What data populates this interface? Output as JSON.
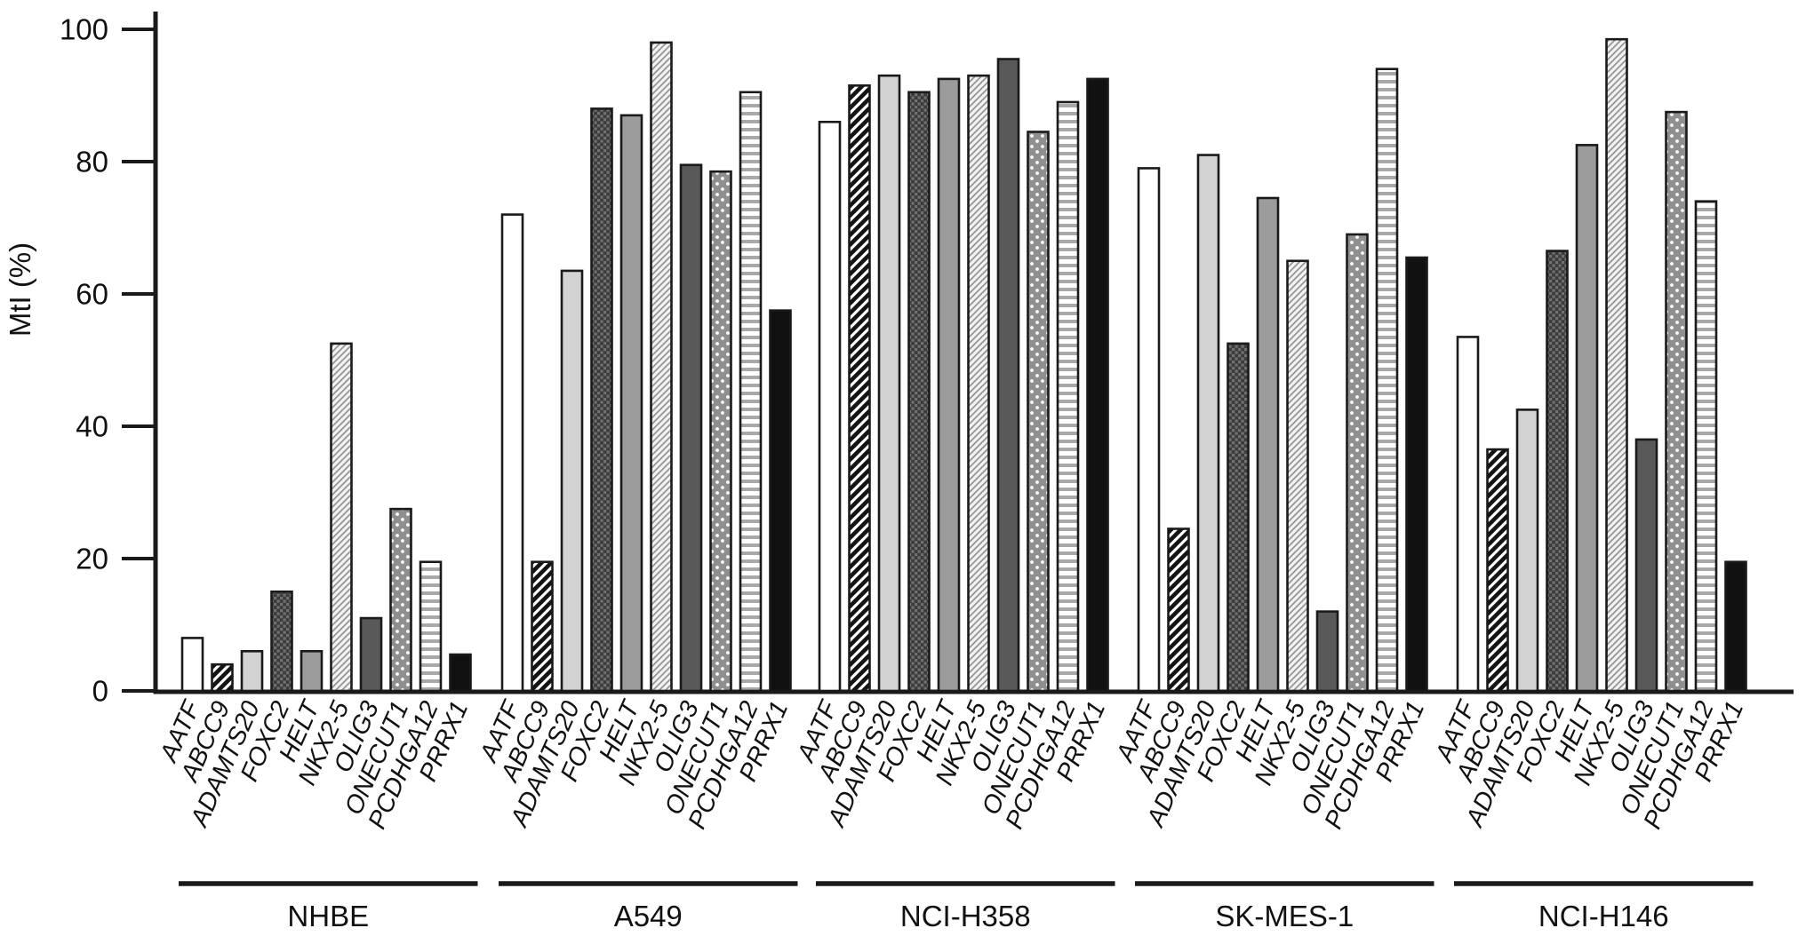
{
  "figure": {
    "description": "Grouped bar chart of methylation index (MtI %) for ten genes across five cell lines"
  },
  "colors": {
    "background": "#ffffff",
    "axis": "#1a1a1a",
    "bar_outline": "#1a1a1a",
    "text": "#111111",
    "solid_fills": {
      "white": "#ffffff",
      "light_gray": "#d2d2d2",
      "medium_gray": "#9c9c9c",
      "dark_gray": "#595959",
      "black": "#111111"
    }
  },
  "chart_data": {
    "type": "bar",
    "title": "",
    "xlabel": "",
    "ylabel": "MtI (%)",
    "ylim": [
      0,
      100
    ],
    "yticks": [
      0,
      20,
      40,
      60,
      80,
      100
    ],
    "grid": false,
    "legend_position": "none",
    "categories": [
      "AATF",
      "ABCC9",
      "ADAMTS20",
      "FOXC2",
      "HELT",
      "NKX2-5",
      "OLIG3",
      "ONECUT1",
      "PCDHGA12",
      "PRRX1"
    ],
    "category_patterns": [
      "white",
      "diagonal-hatch-bold",
      "light-gray",
      "dark-checker",
      "medium-gray",
      "fine-diagonal-stripes",
      "dark-gray",
      "gray-polka-dots",
      "horizontal-stripes",
      "black"
    ],
    "series": [
      {
        "name": "NHBE",
        "values": [
          8,
          4,
          6,
          15,
          6,
          52.5,
          11,
          27.5,
          19.5,
          5.5
        ]
      },
      {
        "name": "A549",
        "values": [
          72,
          19.5,
          63.5,
          88,
          87,
          98,
          79.5,
          78.5,
          90.5,
          57.5
        ]
      },
      {
        "name": "NCI-H358",
        "values": [
          86,
          91.5,
          93,
          90.5,
          92.5,
          93,
          95.5,
          84.5,
          89,
          92.5
        ]
      },
      {
        "name": "SK-MES-1",
        "values": [
          79,
          24.5,
          81,
          52.5,
          74.5,
          65,
          12,
          69,
          94,
          65.5
        ]
      },
      {
        "name": "NCI-H146",
        "values": [
          53.5,
          36.5,
          42.5,
          66.5,
          82.5,
          98.5,
          38,
          87.5,
          74,
          19.5
        ]
      }
    ]
  }
}
